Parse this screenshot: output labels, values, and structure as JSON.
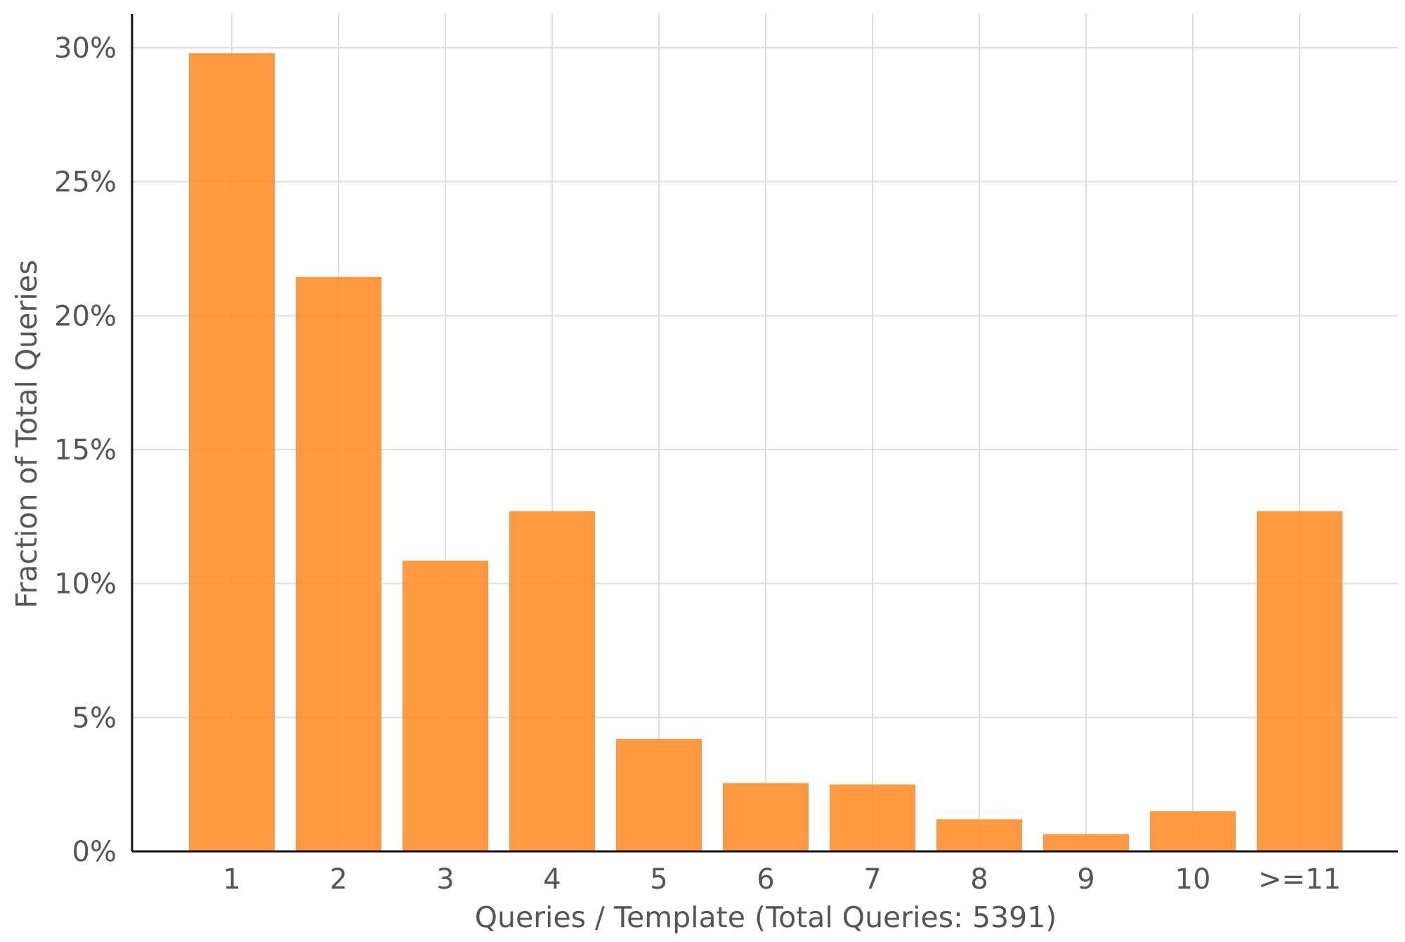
{
  "chart_data": {
    "type": "bar",
    "categories": [
      "1",
      "2",
      "3",
      "4",
      "5",
      "6",
      "7",
      "8",
      "9",
      "10",
      ">=11"
    ],
    "values": [
      29.8,
      21.45,
      10.85,
      12.7,
      4.2,
      2.55,
      2.5,
      1.2,
      0.65,
      1.5,
      12.7
    ],
    "xlabel": "Queries / Template (Total Queries: 5391)",
    "ylabel": "Fraction of Total Queries",
    "ylim": [
      0,
      30
    ],
    "yticks": [
      0,
      5,
      10,
      15,
      20,
      25,
      30
    ],
    "ytick_labels": [
      "0%",
      "5%",
      "10%",
      "15%",
      "20%",
      "25%",
      "30%"
    ],
    "grid": true,
    "legend": false,
    "bar_color": "#ff8c28",
    "grid_color": "#dddddd",
    "axis_color": "#111111"
  }
}
